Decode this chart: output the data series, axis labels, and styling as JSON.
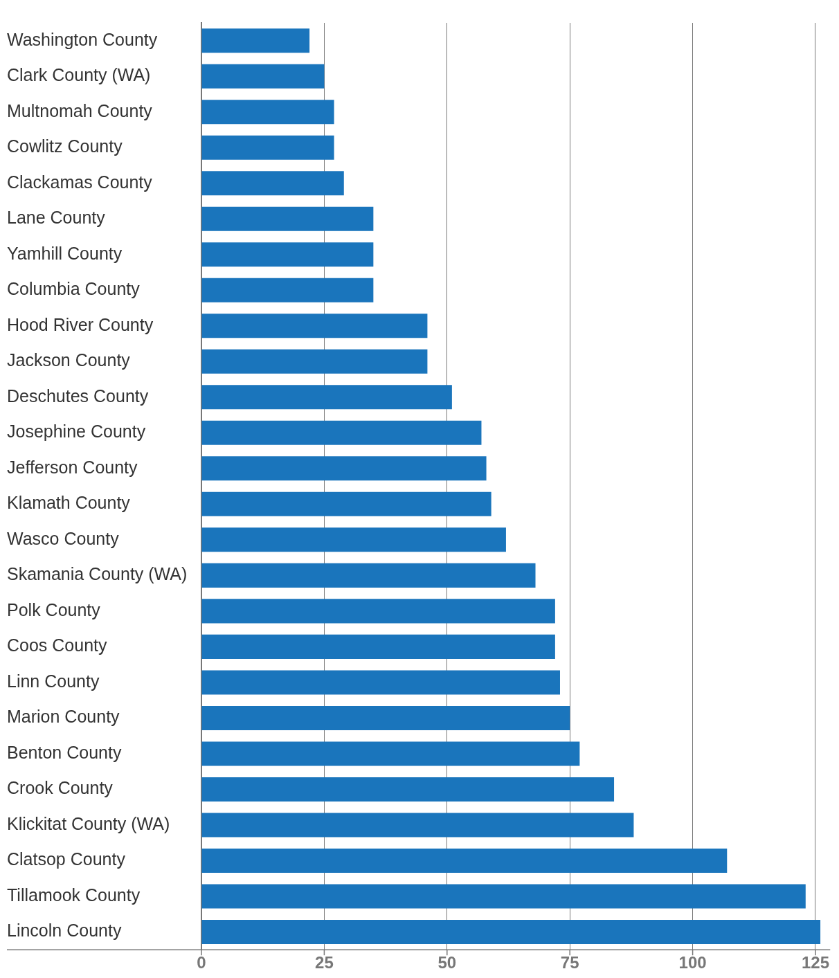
{
  "chart_data": {
    "type": "bar",
    "orientation": "horizontal",
    "categories": [
      "Washington County",
      "Clark County (WA)",
      "Multnomah County",
      "Cowlitz County",
      "Clackamas County",
      "Lane County",
      "Yamhill County",
      "Columbia County",
      "Hood River County",
      "Jackson County",
      "Deschutes County",
      "Josephine County",
      "Jefferson County",
      "Klamath County",
      "Wasco County",
      "Skamania County (WA)",
      "Polk County",
      "Coos County",
      "Linn County",
      "Marion County",
      "Benton County",
      "Crook County",
      "Klickitat County (WA)",
      "Clatsop County",
      "Tillamook County",
      "Lincoln County"
    ],
    "values": [
      22,
      25,
      27,
      27,
      29,
      35,
      35,
      35,
      46,
      46,
      51,
      57,
      58,
      59,
      62,
      68,
      72,
      72,
      73,
      75,
      77,
      84,
      88,
      107,
      123,
      126
    ],
    "color": "#1a75bc",
    "xlim": [
      0,
      128
    ],
    "xticks": [
      0,
      25,
      50,
      75,
      100,
      125
    ],
    "grid": "x",
    "legend": false
  }
}
